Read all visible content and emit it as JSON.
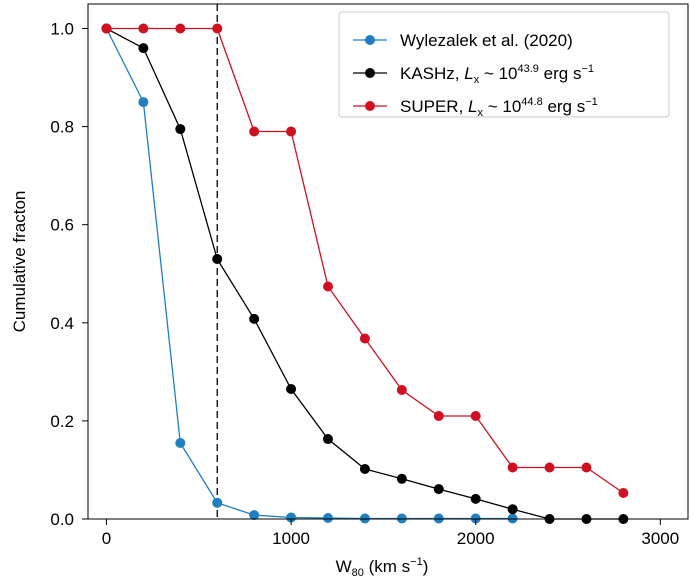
{
  "chart_data": {
    "type": "line",
    "xlabel": {
      "base": "W",
      "sub": "80",
      "rest": " (km s",
      "sup": "−1",
      "close": ")"
    },
    "ylabel": "Cumulative fracton",
    "xlim": [
      -100,
      3150
    ],
    "ylim": [
      0,
      1.05
    ],
    "xticks": [
      0,
      1000,
      2000,
      3000
    ],
    "xtick_labels": [
      "0",
      "1000",
      "2000",
      "3000"
    ],
    "yticks": [
      0.0,
      0.2,
      0.4,
      0.6,
      0.8,
      1.0
    ],
    "ytick_labels": [
      "0.0",
      "0.2",
      "0.4",
      "0.6",
      "0.8",
      "1.0"
    ],
    "vline": {
      "x": 600,
      "style": "dashed",
      "color": "#000000"
    },
    "legend_position": "top-right",
    "x": [
      0,
      200,
      400,
      600,
      800,
      1000,
      1200,
      1400,
      1600,
      1800,
      2000,
      2200,
      2400,
      2600,
      2800
    ],
    "series": [
      {
        "name": "Wylezalek et al. (2020)",
        "legend": {
          "pre": "Wylezalek et al. (2020)"
        },
        "color": "#1f7fc0",
        "x": [
          0,
          200,
          400,
          600,
          800,
          1000,
          1200,
          1400,
          1600,
          1800,
          2000,
          2200
        ],
        "values": [
          1.0,
          0.85,
          0.155,
          0.033,
          0.008,
          0.003,
          0.002,
          0.001,
          0.001,
          0.001,
          0.001,
          0.001
        ]
      },
      {
        "name": "KASHz, Lx ~ 10^43.9 erg s^-1",
        "legend": {
          "pre": "KASHz, ",
          "ital": "L",
          "sub": "x",
          "mid": " ~ 10",
          "sup": "43.9",
          "post": " erg s",
          "sup2": "−1"
        },
        "color": "#000000",
        "x": [
          0,
          200,
          400,
          600,
          800,
          1000,
          1200,
          1400,
          1600,
          1800,
          2000,
          2200,
          2400,
          2600,
          2800
        ],
        "values": [
          1.0,
          0.96,
          0.795,
          0.53,
          0.408,
          0.265,
          0.163,
          0.102,
          0.082,
          0.061,
          0.041,
          0.02,
          0.0,
          0.0,
          0.0
        ]
      },
      {
        "name": "SUPER, Lx ~ 10^44.8 erg s^-1",
        "legend": {
          "pre": "SUPER, ",
          "ital": "L",
          "sub": "x",
          "mid": " ~ 10",
          "sup": "44.8",
          "post": " erg s",
          "sup2": "−1"
        },
        "color": "#d01020",
        "x": [
          0,
          200,
          400,
          600,
          800,
          1000,
          1200,
          1400,
          1600,
          1800,
          2000,
          2200,
          2400,
          2600,
          2800
        ],
        "values": [
          1.0,
          1.0,
          1.0,
          1.0,
          0.79,
          0.79,
          0.474,
          0.368,
          0.263,
          0.21,
          0.21,
          0.105,
          0.105,
          0.105,
          0.053
        ]
      }
    ]
  }
}
